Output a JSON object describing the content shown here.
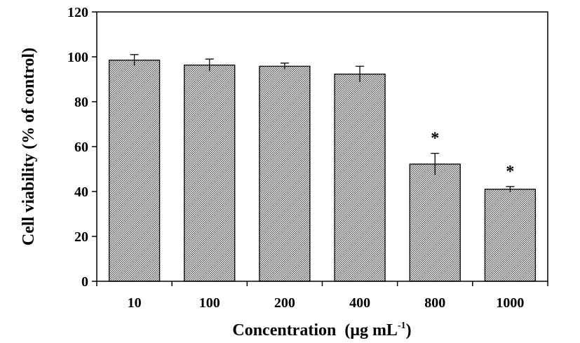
{
  "chart_data": {
    "type": "bar",
    "title": "",
    "xlabel": "Concentration",
    "xlabel_unit_prefix": "(μg mL",
    "xlabel_unit_exp": "-1",
    "xlabel_unit_suffix": ")",
    "ylabel": "Cell viability (% of control)",
    "categories": [
      "10",
      "100",
      "200",
      "400",
      "800",
      "1000"
    ],
    "series": [
      {
        "values": [
          98.5,
          96.3,
          95.8,
          92.3,
          52.2,
          41.0
        ],
        "errors": [
          2.5,
          2.7,
          1.4,
          3.5,
          4.8,
          1.2
        ],
        "significance": [
          "",
          "",
          "",
          "",
          "*",
          "*"
        ],
        "fill": "hatched-gray"
      }
    ],
    "ylim": [
      0,
      120
    ],
    "yticks": [
      "0",
      "20",
      "40",
      "60",
      "80",
      "100",
      "120"
    ],
    "grid": false,
    "legend": "none"
  }
}
